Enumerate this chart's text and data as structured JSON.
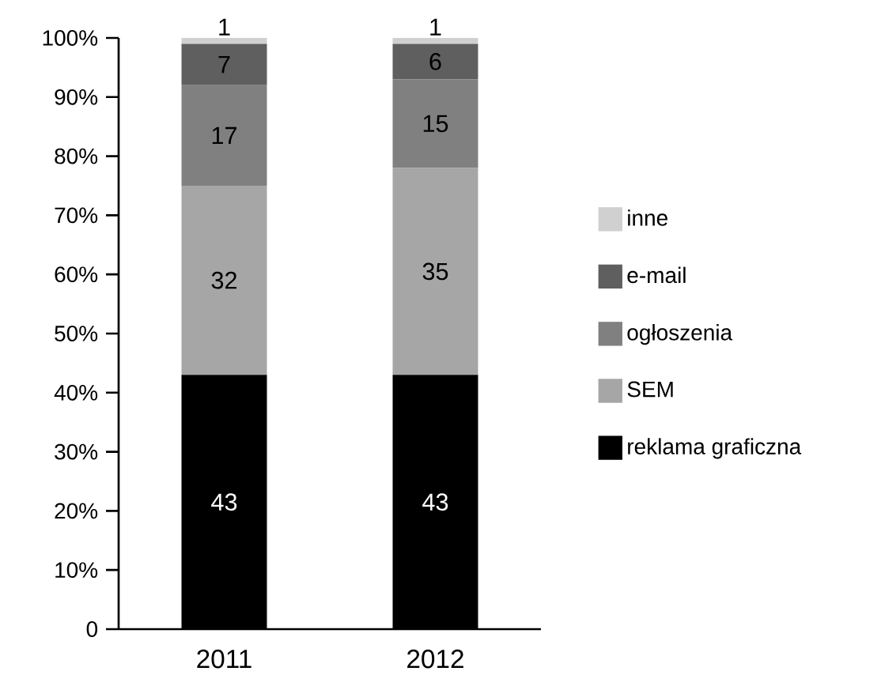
{
  "chart_data": {
    "type": "bar",
    "stacked": true,
    "data_labels": true,
    "legend": "right",
    "grid": false,
    "categories": [
      "2011",
      "2012"
    ],
    "ylim": [
      0,
      100
    ],
    "yticks": [
      0,
      {
        "value": 10,
        "label": "10%"
      },
      {
        "value": 20,
        "label": "20%"
      },
      {
        "value": 30,
        "label": "30%"
      },
      {
        "value": 40,
        "label": "40%"
      },
      {
        "value": 50,
        "label": "50%"
      },
      {
        "value": 60,
        "label": "60%"
      },
      {
        "value": 70,
        "label": "70%"
      },
      {
        "value": 80,
        "label": "80%"
      },
      {
        "value": 90,
        "label": "90%"
      },
      {
        "value": 100,
        "label": "100%"
      }
    ],
    "series": [
      {
        "name": "reklama graficzna",
        "color": "#000000",
        "values": [
          43,
          43
        ]
      },
      {
        "name": "SEM",
        "color": "#a6a6a6",
        "values": [
          32,
          35
        ]
      },
      {
        "name": "ogłoszenia",
        "color": "#808080",
        "values": [
          17,
          15
        ]
      },
      {
        "name": "e-mail",
        "color": "#5f5f5f",
        "values": [
          7,
          6
        ]
      },
      {
        "name": "inne",
        "color": "#d0d0d0",
        "values": [
          1,
          1
        ]
      }
    ]
  }
}
